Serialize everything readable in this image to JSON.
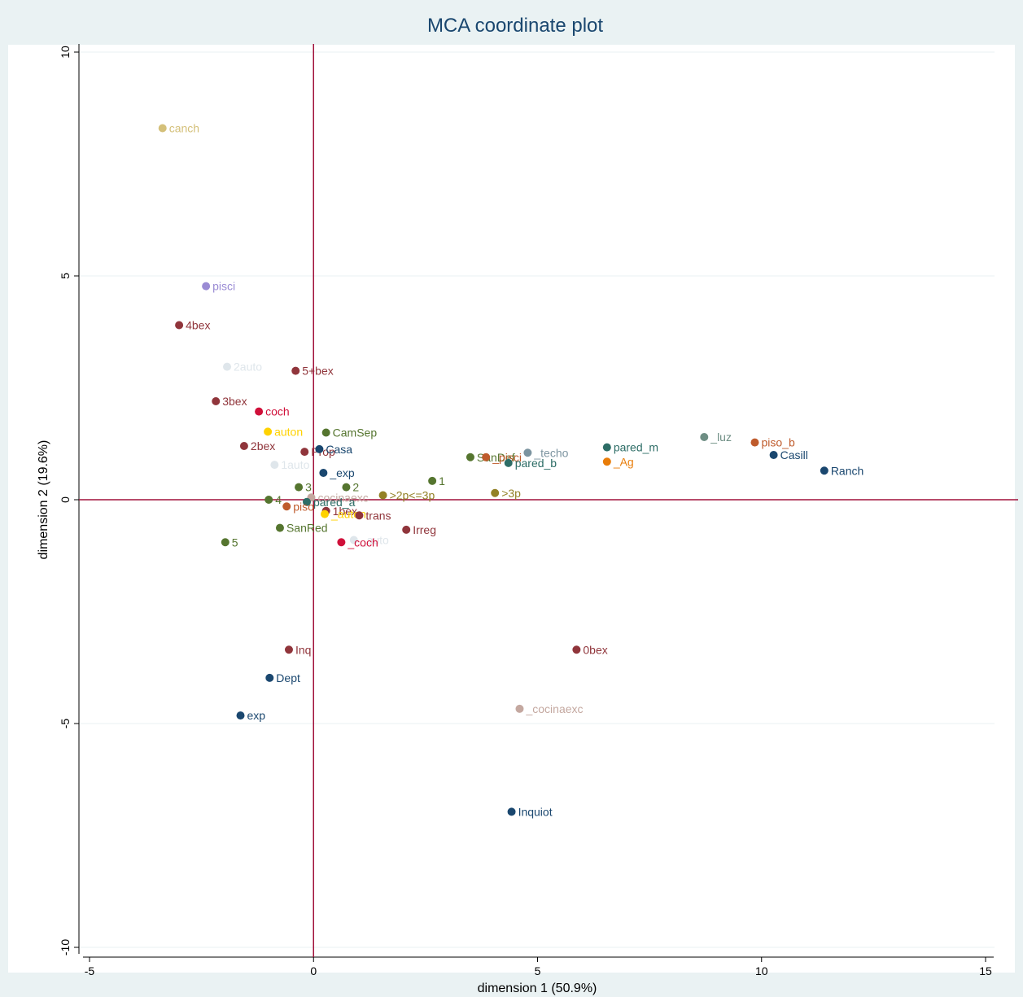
{
  "chart_data": {
    "type": "scatter",
    "title": "MCA coordinate plot",
    "xlabel": "dimension 1 (50.9%)",
    "ylabel": "dimension 2 (19.6%)",
    "xlim": [
      -5,
      15
    ],
    "ylim": [
      -10,
      10
    ],
    "x_ticks": [
      -5,
      0,
      5,
      10,
      15
    ],
    "y_ticks": [
      -10,
      -5,
      0,
      5,
      10
    ],
    "grid": true,
    "reference_lines": {
      "x": 0,
      "y": 0,
      "color": "#a0103a"
    },
    "points": [
      {
        "label": "canch",
        "x": -3.37,
        "y": 8.3,
        "color": "#d4c07a"
      },
      {
        "label": "pisci",
        "x": -2.4,
        "y": 4.77,
        "color": "#9a8bd4"
      },
      {
        "label": "4bex",
        "x": -3.0,
        "y": 3.9,
        "color": "#90353b"
      },
      {
        "label": "2auto",
        "x": -1.93,
        "y": 2.97,
        "color": "#dfe6eb"
      },
      {
        "label": "5+bex",
        "x": -0.4,
        "y": 2.88,
        "color": "#90353b"
      },
      {
        "label": "3bex",
        "x": -2.18,
        "y": 2.2,
        "color": "#90353b"
      },
      {
        "label": "coch",
        "x": -1.22,
        "y": 1.97,
        "color": "#d0103a"
      },
      {
        "label": "auton",
        "x": -1.02,
        "y": 1.52,
        "color": "#ffd200"
      },
      {
        "label": "CamSep",
        "x": 0.28,
        "y": 1.5,
        "color": "#55752f"
      },
      {
        "label": "2bex",
        "x": -1.55,
        "y": 1.2,
        "color": "#90353b"
      },
      {
        "label": "Prop",
        "x": -0.2,
        "y": 1.07,
        "color": "#90353b"
      },
      {
        "label": "Casa",
        "x": 0.13,
        "y": 1.13,
        "color": "#1a476f"
      },
      {
        "label": "1auto",
        "x": -0.87,
        "y": 0.78,
        "color": "#dfe6eb"
      },
      {
        "label": "_exp",
        "x": 0.22,
        "y": 0.6,
        "color": "#1a476f"
      },
      {
        "label": "3",
        "x": -0.33,
        "y": 0.28,
        "color": "#55752f"
      },
      {
        "label": "2",
        "x": 0.73,
        "y": 0.28,
        "color": "#55752f"
      },
      {
        "label": "1",
        "x": 2.65,
        "y": 0.42,
        "color": "#55752f"
      },
      {
        "label": "4",
        "x": -1.0,
        "y": 0.0,
        "color": "#55752f"
      },
      {
        "label": "cocinaexc",
        "x": -0.05,
        "y": 0.05,
        "color": "#c4a8a0"
      },
      {
        "label": ">2p<=3p",
        "x": 1.55,
        "y": 0.1,
        "color": "#938126"
      },
      {
        "label": ">3p",
        "x": 4.05,
        "y": 0.15,
        "color": "#938126"
      },
      {
        "label": "pared_a",
        "x": -0.15,
        "y": -0.05,
        "color": "#2d6d66"
      },
      {
        "label": "piso",
        "x": -0.6,
        "y": -0.15,
        "color": "#bf5b2c"
      },
      {
        "label": "1bex",
        "x": 0.28,
        "y": -0.25,
        "color": "#90353b"
      },
      {
        "label": "_auton",
        "x": 0.25,
        "y": -0.32,
        "color": "#ffd200"
      },
      {
        "label": "trans",
        "x": 1.02,
        "y": -0.35,
        "color": "#90353b"
      },
      {
        "label": "SanRed",
        "x": -0.75,
        "y": -0.63,
        "color": "#55752f"
      },
      {
        "label": "5",
        "x": -1.97,
        "y": -0.95,
        "color": "#55752f"
      },
      {
        "label": "_auto",
        "x": 0.9,
        "y": -0.9,
        "color": "#dfe6eb"
      },
      {
        "label": "_coch",
        "x": 0.62,
        "y": -0.95,
        "color": "#d0103a"
      },
      {
        "label": "Irreg",
        "x": 2.07,
        "y": -0.67,
        "color": "#90353b"
      },
      {
        "label": "SanDef",
        "x": 3.5,
        "y": 0.95,
        "color": "#55752f"
      },
      {
        "label": "_pisci",
        "x": 3.85,
        "y": 0.95,
        "color": "#bf5b2c"
      },
      {
        "label": "_techo",
        "x": 4.78,
        "y": 1.05,
        "color": "#7c94a0"
      },
      {
        "label": "pared_b",
        "x": 4.35,
        "y": 0.82,
        "color": "#2d6d66"
      },
      {
        "label": "pared_m",
        "x": 6.55,
        "y": 1.17,
        "color": "#2d6d66"
      },
      {
        "label": "_Ag",
        "x": 6.55,
        "y": 0.85,
        "color": "#e87d0a"
      },
      {
        "label": "_luz",
        "x": 8.72,
        "y": 1.4,
        "color": "#6e8e84"
      },
      {
        "label": "piso_b",
        "x": 9.85,
        "y": 1.28,
        "color": "#bf5b2c"
      },
      {
        "label": "Casill",
        "x": 10.27,
        "y": 1.0,
        "color": "#1a476f"
      },
      {
        "label": "Ranch",
        "x": 11.4,
        "y": 0.65,
        "color": "#1a476f"
      },
      {
        "label": "Inq",
        "x": -0.55,
        "y": -3.35,
        "color": "#90353b"
      },
      {
        "label": "0bex",
        "x": 5.87,
        "y": -3.35,
        "color": "#90353b"
      },
      {
        "label": "Dept",
        "x": -0.98,
        "y": -3.98,
        "color": "#1a476f"
      },
      {
        "label": "exp",
        "x": -1.63,
        "y": -4.82,
        "color": "#1a476f"
      },
      {
        "label": "_cocinaexc",
        "x": 4.6,
        "y": -4.67,
        "color": "#c4a8a0"
      },
      {
        "label": "Inquiot",
        "x": 4.42,
        "y": -6.97,
        "color": "#1a476f"
      }
    ]
  }
}
